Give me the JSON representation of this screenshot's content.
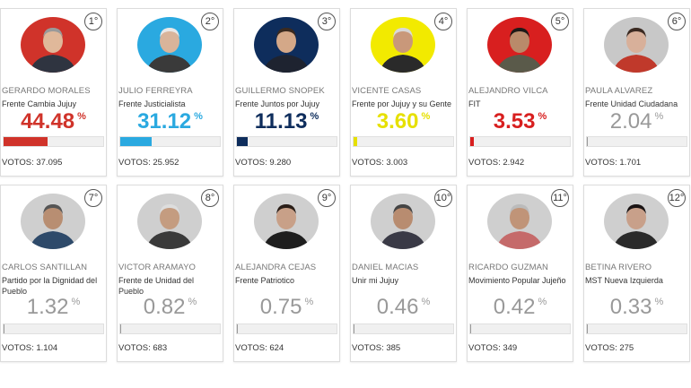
{
  "candidates": [
    {
      "rank": "1°",
      "name": "GERARDO MORALES",
      "party": "Frente Cambia Jujuy",
      "percent": "44.48",
      "sign": "%",
      "share": 44.48,
      "votes": "VOTOS: 37.095",
      "color": "#d0332a",
      "photo_bg": "#d0332a",
      "skin": "#e0b89a",
      "hair": "#9a9a9a",
      "shirt": "#2f3440",
      "icon": "candidate-photo"
    },
    {
      "rank": "2°",
      "name": "JULIO FERREYRA",
      "party": "Frente Justicialista",
      "percent": "31.12",
      "sign": "%",
      "share": 31.12,
      "votes": "VOTOS: 25.952",
      "color": "#2aa9e0",
      "photo_bg": "#2aa9e0",
      "skin": "#d9b49a",
      "hair": "#e8e8e8",
      "shirt": "#3a3a3a",
      "icon": "candidate-photo"
    },
    {
      "rank": "3°",
      "name": "GUILLERMO SNOPEK",
      "party": "Frente Juntos por Jujuy",
      "percent": "11.13",
      "sign": "%",
      "share": 11.13,
      "votes": "VOTOS: 9.280",
      "color": "#0e2d5c",
      "photo_bg": "#0e2d5c",
      "skin": "#d4a888",
      "hair": "#3a2a20",
      "shirt": "#1e2330",
      "icon": "candidate-photo"
    },
    {
      "rank": "4°",
      "name": "VICENTE CASAS",
      "party": "Frente por Jujuy y su Gente",
      "percent": "3.60",
      "sign": "%",
      "share": 3.6,
      "votes": "VOTOS: 3.003",
      "color": "#e6e000",
      "photo_bg": "#f2ea00",
      "skin": "#c9987a",
      "hair": "#d8d8d8",
      "shirt": "#2a2a2a",
      "icon": "candidate-photo"
    },
    {
      "rank": "5°",
      "name": "ALEJANDRO VILCA",
      "party": "FIT",
      "percent": "3.53",
      "sign": "%",
      "share": 3.53,
      "votes": "VOTOS: 2.942",
      "color": "#d81f1f",
      "photo_bg": "#d81f1f",
      "skin": "#b98a6a",
      "hair": "#1e1a18",
      "shirt": "#5a5a4a",
      "icon": "candidate-photo"
    },
    {
      "rank": "6°",
      "name": "PAULA ALVAREZ",
      "party": "Frente Unidad Ciudadana",
      "percent": "2.04",
      "sign": "%",
      "share": 2.04,
      "votes": "VOTOS: 1.701",
      "color": "#999999",
      "photo_bg": "#c8c8c8",
      "skin": "#d8b09a",
      "hair": "#3b2a22",
      "shirt": "#c0392b",
      "icon": "candidate-photo"
    },
    {
      "rank": "7°",
      "name": "CARLOS SANTILLAN",
      "party": "Partido por la Dignidad del Pueblo",
      "percent": "1.32",
      "sign": "%",
      "share": 1.32,
      "votes": "VOTOS: 1.104",
      "color": "#999999",
      "photo_bg": "#cfcfcf",
      "skin": "#b88e72",
      "hair": "#555555",
      "shirt": "#2e4a6a",
      "icon": "candidate-photo"
    },
    {
      "rank": "8°",
      "name": "VICTOR ARAMAYO",
      "party": "Frente de Unidad del Pueblo",
      "percent": "0.82",
      "sign": "%",
      "share": 0.82,
      "votes": "VOTOS: 683",
      "color": "#999999",
      "photo_bg": "#cfcfcf",
      "skin": "#c49c80",
      "hair": "#dddddd",
      "shirt": "#3a3a3a",
      "icon": "candidate-photo"
    },
    {
      "rank": "9°",
      "name": "ALEJANDRA CEJAS",
      "party": "Frente Patriotico",
      "percent": "0.75",
      "sign": "%",
      "share": 0.75,
      "votes": "VOTOS: 624",
      "color": "#999999",
      "photo_bg": "#cfcfcf",
      "skin": "#c8a088",
      "hair": "#2a1e18",
      "shirt": "#1e1e1e",
      "icon": "candidate-photo"
    },
    {
      "rank": "10°",
      "name": "DANIEL MACIAS",
      "party": "Unir mi Jujuy",
      "percent": "0.46",
      "sign": "%",
      "share": 0.46,
      "votes": "VOTOS: 385",
      "color": "#999999",
      "photo_bg": "#cfcfcf",
      "skin": "#b88c70",
      "hair": "#444444",
      "shirt": "#3a3a46",
      "icon": "candidate-photo"
    },
    {
      "rank": "11°",
      "name": "RICARDO GUZMAN",
      "party": "Movimiento Popular Jujeño",
      "percent": "0.42",
      "sign": "%",
      "share": 0.42,
      "votes": "VOTOS: 349",
      "color": "#999999",
      "photo_bg": "#cfcfcf",
      "skin": "#c09478",
      "hair": "#bbbbbb",
      "shirt": "#c56a6a",
      "icon": "candidate-photo"
    },
    {
      "rank": "12°",
      "name": "BETINA RIVERO",
      "party": "MST Nueva Izquierda",
      "percent": "0.33",
      "sign": "%",
      "share": 0.33,
      "votes": "VOTOS: 275",
      "color": "#999999",
      "photo_bg": "#cfcfcf",
      "skin": "#c8a08a",
      "hair": "#1a1414",
      "shirt": "#2a2a2a",
      "icon": "candidate-photo"
    }
  ]
}
